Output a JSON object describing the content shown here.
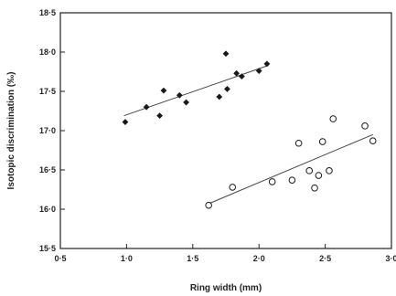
{
  "chart_data": {
    "type": "scatter",
    "xlabel": "Ring width (mm)",
    "ylabel": "Isotopic discrimination (‰)",
    "xlim": [
      0.5,
      3.0
    ],
    "ylim": [
      15.5,
      18.5
    ],
    "xticks": [
      0.5,
      1.0,
      1.5,
      2.0,
      2.5,
      3.0
    ],
    "yticks": [
      15.5,
      16.0,
      16.5,
      17.0,
      17.5,
      18.0,
      18.5
    ],
    "xtick_labels": [
      "0·5",
      "1·0",
      "1·5",
      "2·0",
      "2·5",
      "3·0"
    ],
    "ytick_labels": [
      "15·5",
      "16·0",
      "16·5",
      "17·0",
      "17·5",
      "18·0",
      "18·5"
    ],
    "grid": false,
    "series": [
      {
        "marker": "filled-diamond",
        "color": "#1a1a1a",
        "points": [
          [
            0.99,
            17.11
          ],
          [
            1.15,
            17.3
          ],
          [
            1.25,
            17.19
          ],
          [
            1.28,
            17.51
          ],
          [
            1.4,
            17.45
          ],
          [
            1.45,
            17.36
          ],
          [
            1.7,
            17.43
          ],
          [
            1.75,
            17.98
          ],
          [
            1.76,
            17.53
          ],
          [
            1.83,
            17.73
          ],
          [
            1.87,
            17.69
          ],
          [
            2.0,
            17.76
          ],
          [
            2.06,
            17.85
          ]
        ],
        "trend": {
          "x": [
            0.98,
            2.07
          ],
          "y": [
            17.19,
            17.83
          ]
        }
      },
      {
        "marker": "open-circle",
        "color": "#1a1a1a",
        "points": [
          [
            1.62,
            16.05
          ],
          [
            1.8,
            16.28
          ],
          [
            2.1,
            16.35
          ],
          [
            2.25,
            16.37
          ],
          [
            2.3,
            16.84
          ],
          [
            2.38,
            16.49
          ],
          [
            2.42,
            16.27
          ],
          [
            2.45,
            16.43
          ],
          [
            2.48,
            16.86
          ],
          [
            2.53,
            16.49
          ],
          [
            2.56,
            17.15
          ],
          [
            2.8,
            17.06
          ],
          [
            2.86,
            16.87
          ]
        ],
        "trend": {
          "x": [
            1.62,
            2.86
          ],
          "y": [
            16.07,
            16.95
          ]
        }
      }
    ]
  }
}
